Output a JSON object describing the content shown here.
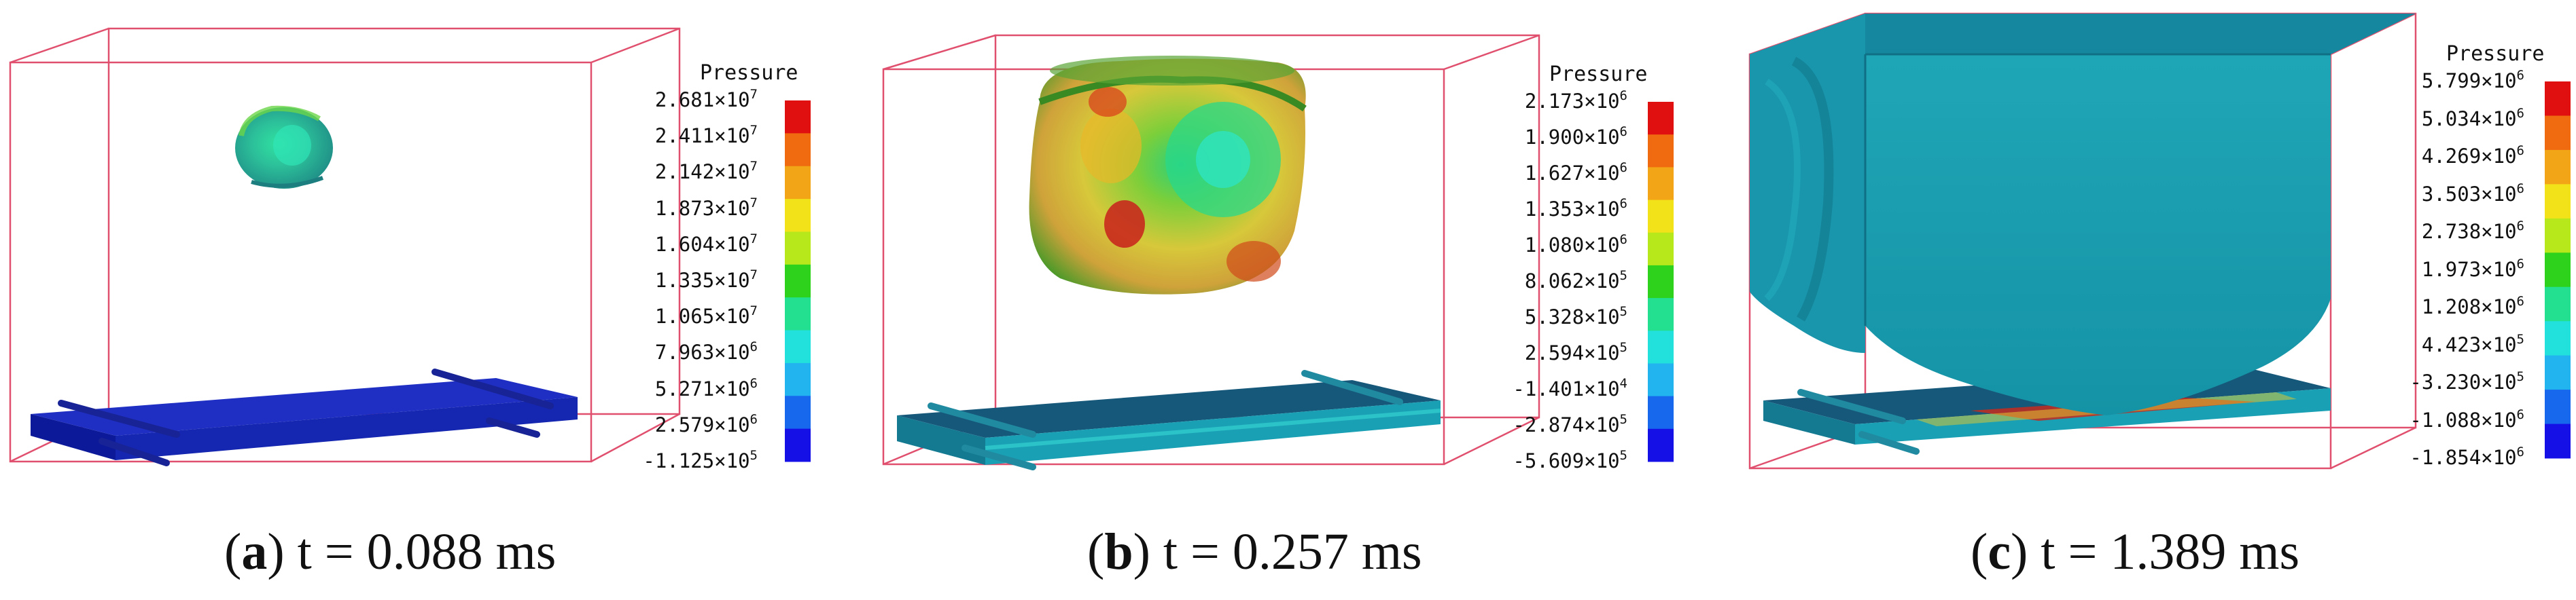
{
  "panels": [
    {
      "letter": "a",
      "caption": "t = 0.088 ms",
      "legend": {
        "title": "Pressure",
        "ticks": [
          {
            "m": "2.681",
            "e": "7"
          },
          {
            "m": "2.411",
            "e": "7"
          },
          {
            "m": "2.142",
            "e": "7"
          },
          {
            "m": "1.873",
            "e": "7"
          },
          {
            "m": "1.604",
            "e": "7"
          },
          {
            "m": "1.335",
            "e": "7"
          },
          {
            "m": "1.065",
            "e": "7"
          },
          {
            "m": "7.963",
            "e": "6"
          },
          {
            "m": "5.271",
            "e": "6"
          },
          {
            "m": "2.579",
            "e": "6"
          },
          {
            "m": "-1.125",
            "e": "5"
          }
        ]
      }
    },
    {
      "letter": "b",
      "caption": "t = 0.257 ms",
      "legend": {
        "title": "Pressure",
        "ticks": [
          {
            "m": "2.173",
            "e": "6"
          },
          {
            "m": "1.900",
            "e": "6"
          },
          {
            "m": "1.627",
            "e": "6"
          },
          {
            "m": "1.353",
            "e": "6"
          },
          {
            "m": "1.080",
            "e": "6"
          },
          {
            "m": "8.062",
            "e": "5"
          },
          {
            "m": "5.328",
            "e": "5"
          },
          {
            "m": "2.594",
            "e": "5"
          },
          {
            "m": "-1.401",
            "e": "4"
          },
          {
            "m": "-2.874",
            "e": "5"
          },
          {
            "m": "-5.609",
            "e": "5"
          }
        ]
      }
    },
    {
      "letter": "c",
      "caption": "t = 1.389 ms",
      "legend": {
        "title": "Pressure",
        "ticks": [
          {
            "m": "5.799",
            "e": "6"
          },
          {
            "m": "5.034",
            "e": "6"
          },
          {
            "m": "4.269",
            "e": "6"
          },
          {
            "m": "3.503",
            "e": "6"
          },
          {
            "m": "2.738",
            "e": "6"
          },
          {
            "m": "1.973",
            "e": "6"
          },
          {
            "m": "1.208",
            "e": "6"
          },
          {
            "m": "4.423",
            "e": "5"
          },
          {
            "m": "-3.230",
            "e": "5"
          },
          {
            "m": "-1.088",
            "e": "6"
          },
          {
            "m": "-1.854",
            "e": "6"
          }
        ]
      }
    }
  ],
  "colorbar": [
    "#e01010",
    "#f06a10",
    "#f2a516",
    "#f2e21a",
    "#b7e81c",
    "#2ed21c",
    "#22e090",
    "#22e0dc",
    "#22b4ee",
    "#1868ee",
    "#1410e6"
  ],
  "times_symbol": "×10",
  "caption_open": "(",
  "caption_close": ")"
}
